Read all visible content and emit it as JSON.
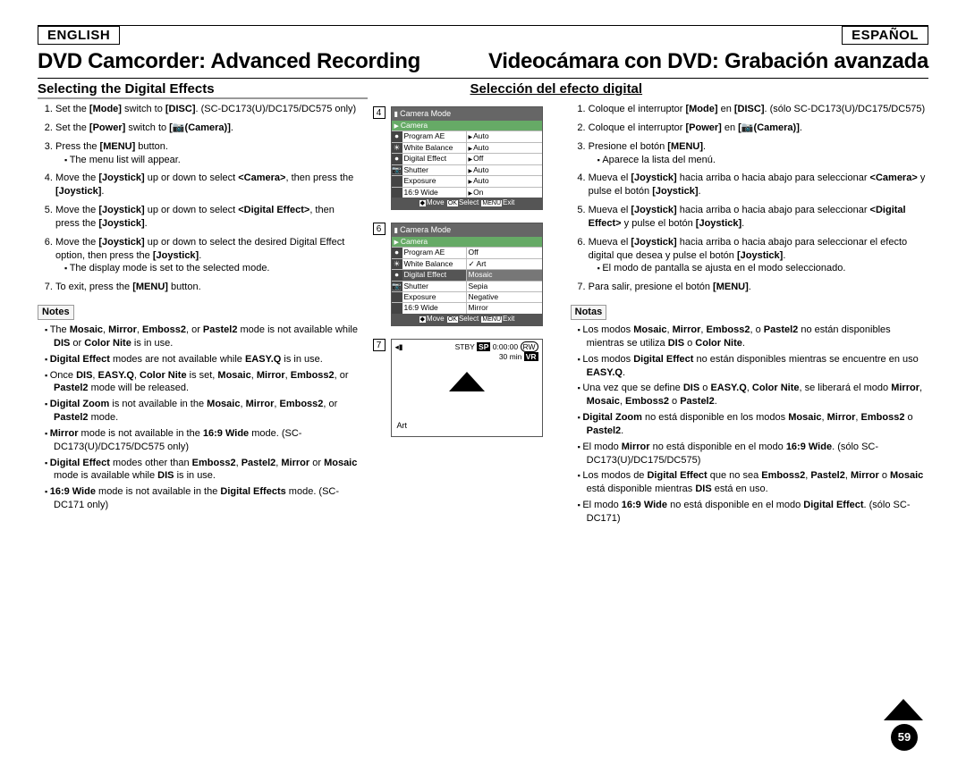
{
  "lang": {
    "en": "ENGLISH",
    "es": "ESPAÑOL"
  },
  "title": {
    "en": "DVD Camcorder: Advanced Recording",
    "es": "Videocámara con DVD: Grabación avanzada"
  },
  "section": {
    "en": "Selecting the Digital Effects",
    "es": "Selección del efecto digital"
  },
  "steps_en": [
    "Set the <b>[Mode]</b> switch to <b>[DISC]</b>. (SC-DC173(U)/DC175/DC575 only)",
    "Set the <b>[Power]</b> switch to <b>[📷(Camera)]</b>.",
    "Press the <b>[MENU]</b> button.<ul class='sub'><li>The menu list will appear.</li></ul>",
    "Move the <b>[Joystick]</b> up or down to select <b>&lt;Camera&gt;</b>, then press the <b>[Joystick]</b>.",
    "Move the <b>[Joystick]</b> up or down to select <b>&lt;Digital Effect&gt;</b>, then press the <b>[Joystick]</b>.",
    "Move the <b>[Joystick]</b> up or down to select the desired Digital Effect option, then press the <b>[Joystick]</b>.<ul class='sub'><li>The display mode is set to the selected mode.</li></ul>",
    "To exit, press the <b>[MENU]</b> button."
  ],
  "steps_es": [
    "Coloque el interruptor <b>[Mode]</b> en <b>[DISC]</b>. (sólo SC-DC173(U)/DC175/DC575)",
    "Coloque el interruptor <b>[Power]</b> en <b>[📷(Camera)]</b>.",
    "Presione el botón <b>[MENU]</b>.<ul class='sub'><li>Aparece la lista del menú.</li></ul>",
    "Mueva el <b>[Joystick]</b> hacia arriba o hacia abajo para seleccionar <b>&lt;Camera&gt;</b> y pulse el botón <b>[Joystick]</b>.",
    "Mueva el <b>[Joystick]</b> hacia arriba o hacia abajo para seleccionar <b>&lt;Digital Effect&gt;</b> y pulse el botón <b>[Joystick]</b>.",
    "Mueva el <b>[Joystick]</b> hacia arriba o hacia abajo para seleccionar el efecto digital que desea y pulse el botón <b>[Joystick]</b>.<ul class='sub'><li>El modo de pantalla se ajusta en el modo seleccionado.</li></ul>",
    "Para salir, presione el botón <b>[MENU]</b>."
  ],
  "notes_label": {
    "en": "Notes",
    "es": "Notas"
  },
  "notes_en": [
    "The <b>Mosaic</b>, <b>Mirror</b>, <b>Emboss2</b>, or <b>Pastel2</b> mode is not available while <b>DIS</b> or <b>Color Nite</b> is in use.",
    "<b>Digital Effect</b> modes are not available while <b>EASY.Q</b> is in use.",
    "Once <b>DIS</b>, <b>EASY.Q</b>, <b>Color Nite</b> is set, <b>Mosaic</b>, <b>Mirror</b>, <b>Emboss2</b>, or <b>Pastel2</b> mode will be released.",
    "<b>Digital Zoom</b> is not available in the <b>Mosaic</b>, <b>Mirror</b>, <b>Emboss2</b>, or <b>Pastel2</b> mode.",
    "<b>Mirror</b> mode is not available in the <b>16:9 Wide</b> mode. (SC-DC173(U)/DC175/DC575 only)",
    "<b>Digital Effect</b> modes other than <b>Emboss2</b>, <b>Pastel2</b>, <b>Mirror</b> or <b>Mosaic</b> mode is available while <b>DIS</b> is in use.",
    "<b>16:9 Wide</b> mode is not available in the <b>Digital Effects</b> mode. (SC-DC171 only)"
  ],
  "notes_es": [
    "Los modos <b>Mosaic</b>, <b>Mirror</b>, <b>Emboss2</b>, o <b>Pastel2</b> no están disponibles mientras se utiliza <b>DIS</b> o <b>Color Nite</b>.",
    "Los modos <b>Digital Effect</b> no están disponibles mientras se encuentre en uso <b>EASY.Q</b>.",
    "Una vez que se define <b>DIS</b> o <b>EASY.Q</b>, <b>Color Nite</b>, se liberará el modo <b>Mirror</b>, <b>Mosaic</b>, <b>Emboss2</b> o <b>Pastel2</b>.",
    "<b>Digital Zoom</b> no está disponible en los modos <b>Mosaic</b>, <b>Mirror</b>, <b>Emboss2</b> o <b>Pastel2</b>.",
    "El modo <b>Mirror</b> no está disponible en el modo <b>16:9 Wide</b>. (sólo SC-DC173(U)/DC175/DC575)",
    "Los modos de <b>Digital Effect</b> que no sea <b>Emboss2</b>, <b>Pastel2</b>, <b>Mirror</b> o <b>Mosaic</b> está disponible mientras <b>DIS</b> está en uso.",
    "El modo <b>16:9 Wide</b> no está disponible en el modo <b>Digital Effect</b>. (sólo SC-DC171)"
  ],
  "osd": {
    "title": "Camera Mode",
    "tab": "Camera",
    "panel4": [
      {
        "icon": "●",
        "label": "Program AE",
        "val": "Auto",
        "arrow": true
      },
      {
        "icon": "☀",
        "label": "White Balance",
        "val": "Auto",
        "arrow": true
      },
      {
        "icon": "●",
        "label": "Digital Effect",
        "val": "Off",
        "arrow": true
      },
      {
        "icon": "📷",
        "label": "Shutter",
        "val": "Auto",
        "arrow": true
      },
      {
        "icon": " ",
        "label": "Exposure",
        "val": "Auto",
        "arrow": true
      },
      {
        "icon": " ",
        "label": "16:9 Wide",
        "val": "On",
        "arrow": true
      }
    ],
    "panel6": [
      {
        "icon": "●",
        "label": "Program AE",
        "val": "Off"
      },
      {
        "icon": "☀",
        "label": "White Balance",
        "val": "Art",
        "chk": true
      },
      {
        "icon": "●",
        "label": "Digital Effect",
        "val": "Mosaic",
        "selL": true,
        "selR": true
      },
      {
        "icon": "📷",
        "label": "Shutter",
        "val": "Sepia"
      },
      {
        "icon": " ",
        "label": "Exposure",
        "val": "Negative"
      },
      {
        "icon": " ",
        "label": "16:9 Wide",
        "val": "Mirror"
      }
    ],
    "foot": {
      "move": "Move",
      "select": "Select",
      "exit": "Exit",
      "k1": "◆",
      "k2": "OK",
      "k3": "MENU"
    },
    "panel7": {
      "stby": "STBY",
      "sp": "SP",
      "tc": "0:00:00",
      "rw": "RW",
      "dur": "30 min",
      "vr": "VR",
      "art": "Art"
    }
  },
  "page_number": "59"
}
